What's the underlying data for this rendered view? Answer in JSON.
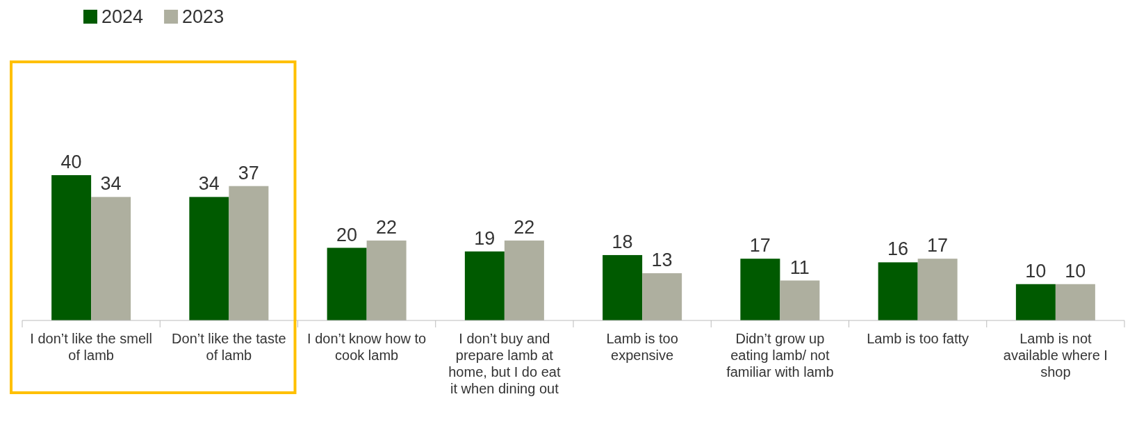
{
  "chart_data": {
    "type": "bar",
    "categories": [
      "I don’t like the smell of lamb",
      "Don’t like the taste of lamb",
      "I don’t know how to cook lamb",
      "I don’t buy and prepare lamb at home, but I do eat it when dining out",
      "Lamb is too expensive",
      "Didn’t grow up eating lamb/ not familiar with lamb",
      "Lamb is too fatty",
      "Lamb is not available where I shop"
    ],
    "series": [
      {
        "name": "2024",
        "color": "#005a00",
        "values": [
          40,
          34,
          20,
          19,
          18,
          17,
          16,
          10
        ]
      },
      {
        "name": "2023",
        "color": "#aeaf9f",
        "values": [
          34,
          37,
          22,
          22,
          13,
          11,
          17,
          10
        ]
      }
    ],
    "data_labels": true,
    "legend": "top left"
  }
}
